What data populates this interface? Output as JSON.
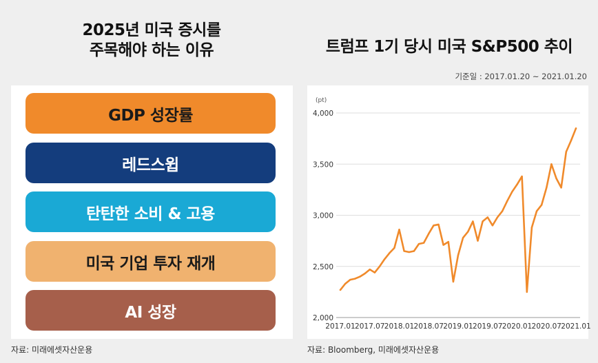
{
  "left": {
    "title_line1": "2025년 미국 증시를",
    "title_line2": "주목해야 하는 이유",
    "reasons": [
      {
        "label": "GDP 성장률"
      },
      {
        "label": "레드스윕"
      },
      {
        "label": "탄탄한 소비 & 고용"
      },
      {
        "label": "미국 기업 투자 재개"
      },
      {
        "label": "AI 성장"
      }
    ],
    "source": "자료: 미래에셋자산운용"
  },
  "right": {
    "title": "트럼프 1기 당시 미국 S&P500 추이",
    "base_date": "기준일 : 2017.01.20 ~ 2021.01.20",
    "source": "자료: Bloomberg, 미래에셋자산운용"
  },
  "colors": {
    "reason1": "#f08a2b",
    "reason2": "#143d7d",
    "reason3": "#1aa9d5",
    "reason4": "#f0b26f",
    "reason5": "#a65f4b",
    "line": "#f08a2b",
    "grid": "#dddddd"
  },
  "chart_data": {
    "type": "line",
    "title": "트럼프 1기 당시 미국 S&P500 추이",
    "unit_label": "(pt)",
    "xlabel": "",
    "ylabel": "",
    "ylim": [
      2000,
      4000
    ],
    "yticks": [
      2000,
      2500,
      3000,
      3500,
      4000
    ],
    "ytick_labels": [
      "2,000",
      "2,500",
      "3,000",
      "3,500",
      "4,000"
    ],
    "xlim": [
      "2017.01",
      "2021.01"
    ],
    "xticks": [
      "2017.01",
      "2017.07",
      "2018.01",
      "2018.07",
      "2019.01",
      "2019.07",
      "2020.01",
      "2020.07",
      "2021.01"
    ],
    "grid": "horizontal",
    "series": [
      {
        "name": "",
        "x": [
          "2017.01",
          "2017.02",
          "2017.03",
          "2017.04",
          "2017.05",
          "2017.06",
          "2017.07",
          "2017.08",
          "2017.09",
          "2017.10",
          "2017.11",
          "2017.12",
          "2018.01",
          "2018.02",
          "2018.03",
          "2018.04",
          "2018.05",
          "2018.06",
          "2018.07",
          "2018.08",
          "2018.09",
          "2018.10",
          "2018.11",
          "2018.12",
          "2019.01",
          "2019.02",
          "2019.03",
          "2019.04",
          "2019.05",
          "2019.06",
          "2019.07",
          "2019.08",
          "2019.09",
          "2019.10",
          "2019.11",
          "2019.12",
          "2020.01",
          "2020.02",
          "2020.03",
          "2020.04",
          "2020.05",
          "2020.06",
          "2020.07",
          "2020.08",
          "2020.09",
          "2020.10",
          "2020.11",
          "2020.12",
          "2021.01"
        ],
        "values": [
          2270,
          2330,
          2370,
          2380,
          2400,
          2430,
          2470,
          2440,
          2500,
          2570,
          2630,
          2680,
          2860,
          2650,
          2640,
          2650,
          2720,
          2730,
          2820,
          2900,
          2910,
          2710,
          2740,
          2350,
          2610,
          2780,
          2840,
          2940,
          2750,
          2940,
          2980,
          2900,
          2980,
          3040,
          3140,
          3230,
          3300,
          3380,
          2250,
          2880,
          3040,
          3100,
          3270,
          3500,
          3360,
          3270,
          3620,
          3730,
          3850
        ]
      }
    ]
  }
}
